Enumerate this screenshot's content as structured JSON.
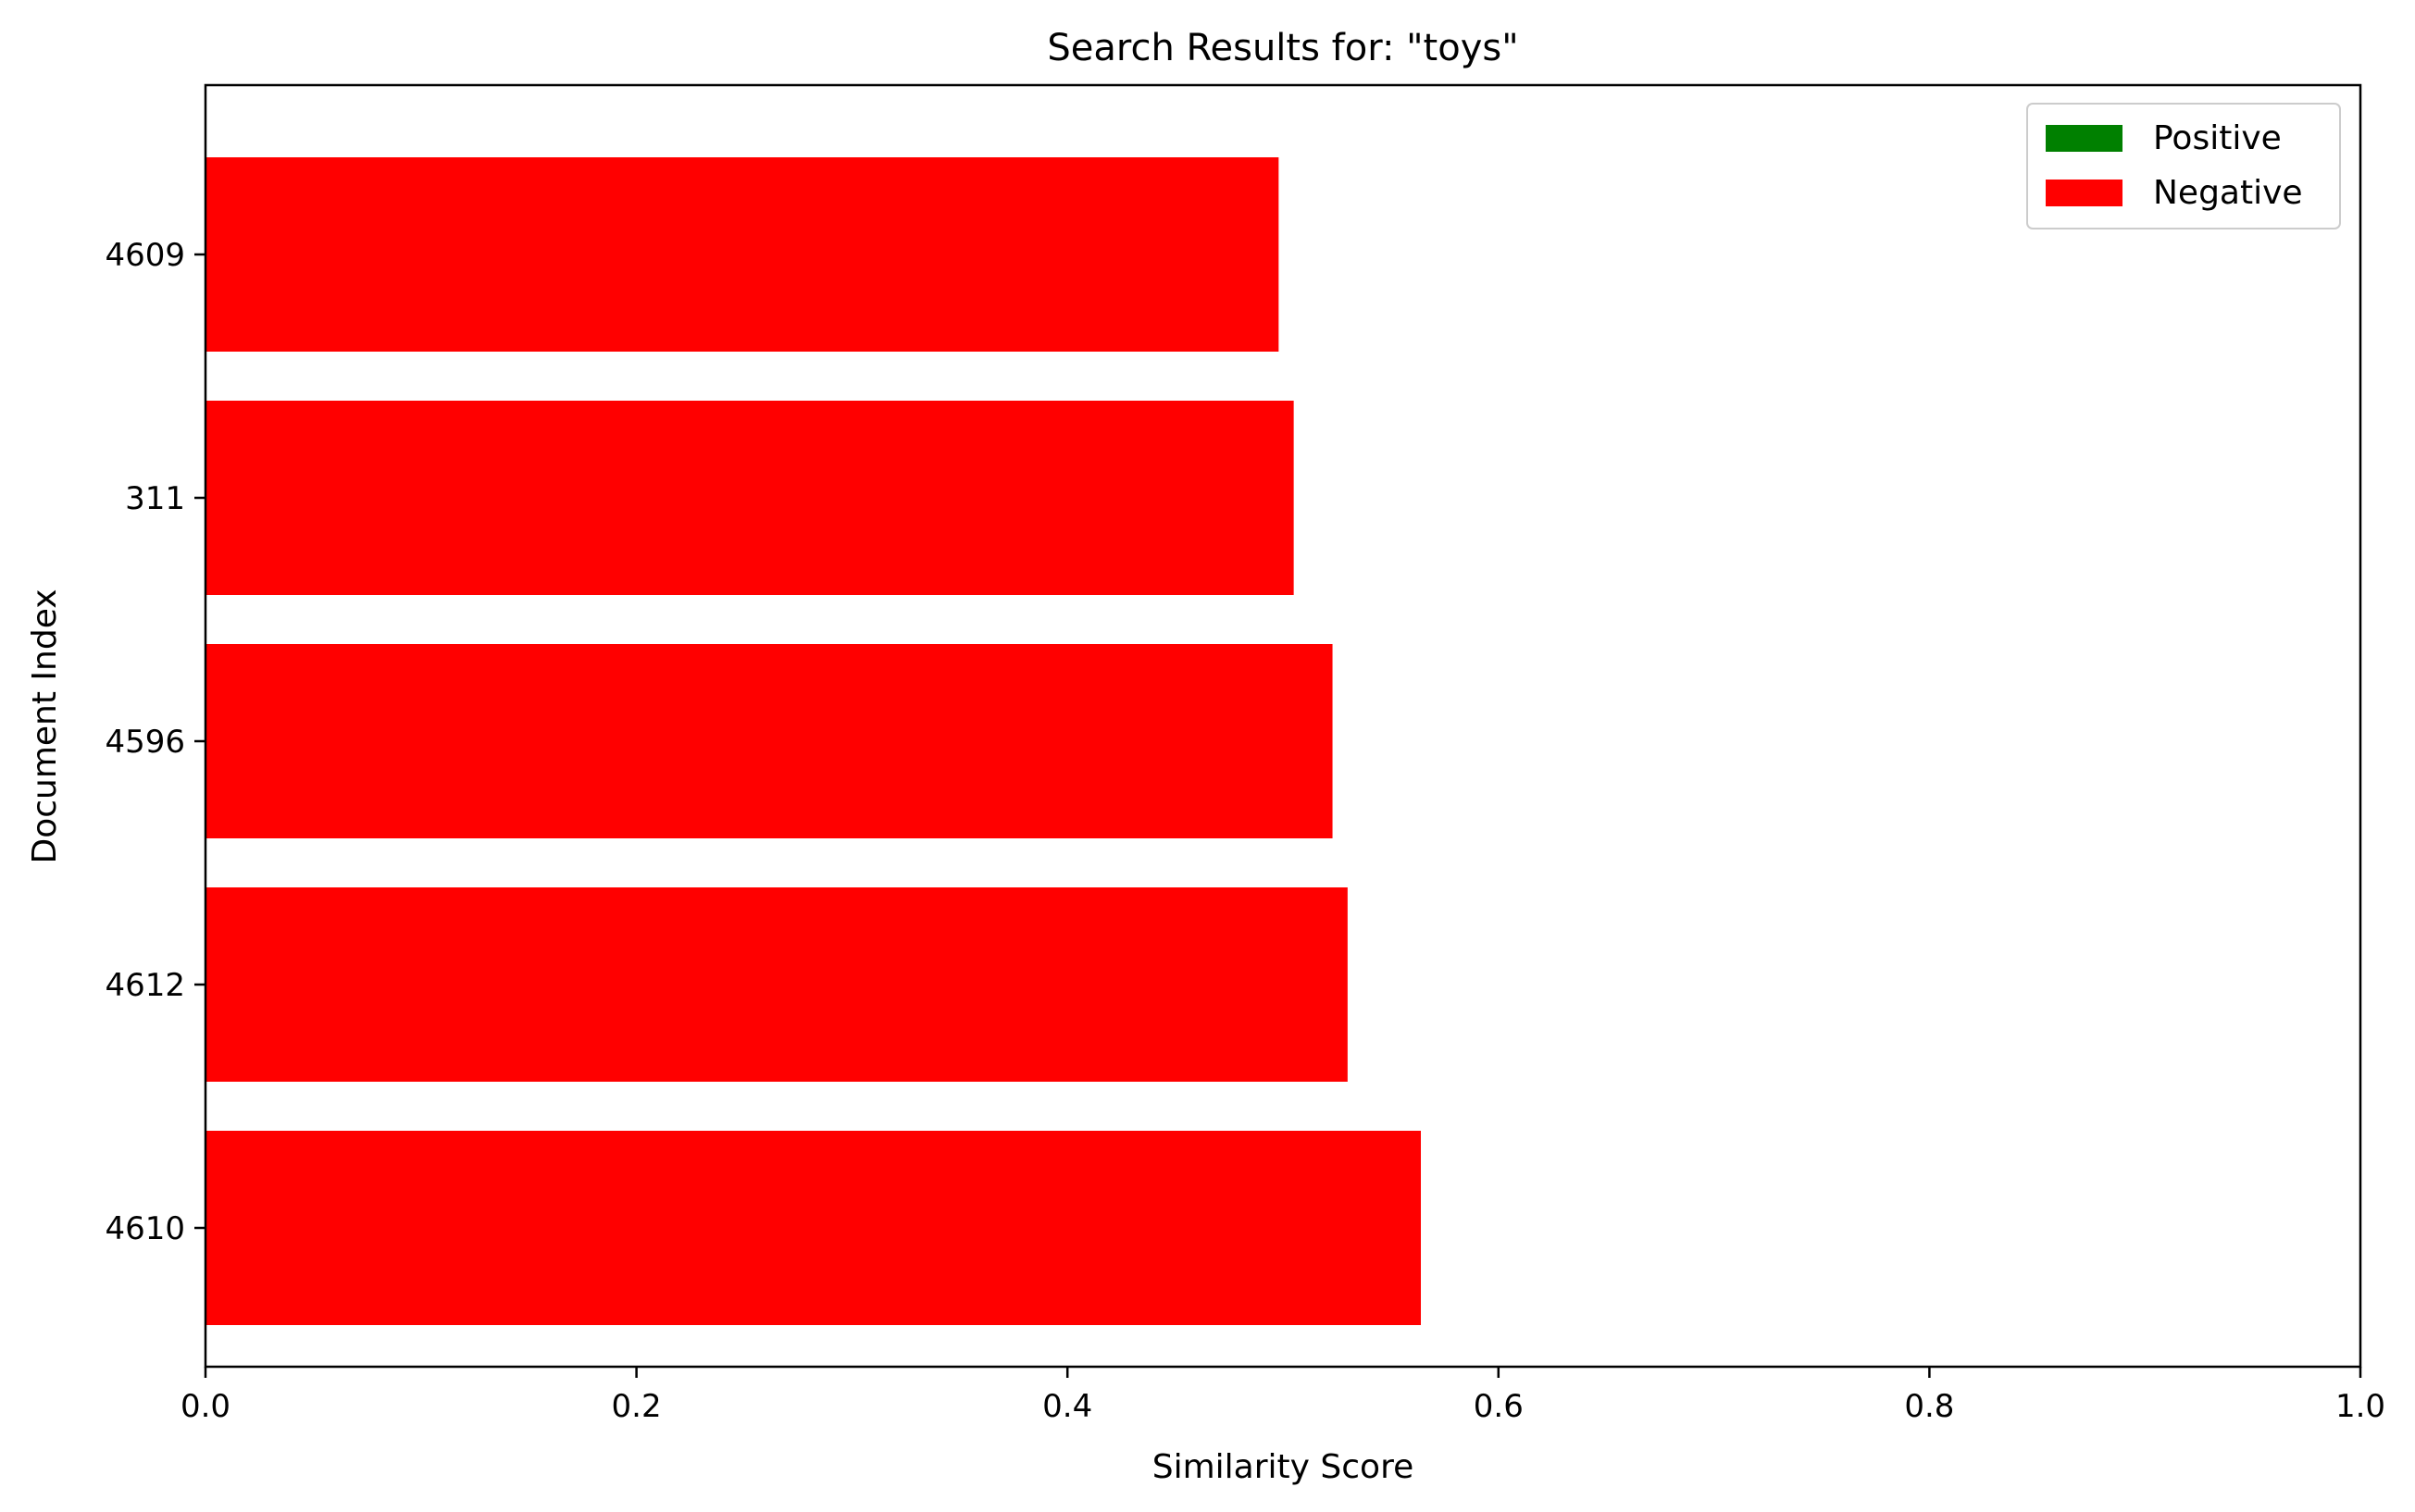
{
  "chart_data": {
    "type": "bar",
    "orientation": "horizontal",
    "title": "Search Results for: \"toys\"",
    "xlabel": "Similarity Score",
    "ylabel": "Document Index",
    "xlim": [
      0,
      1.0
    ],
    "x_ticks": [
      "0.0",
      "0.2",
      "0.4",
      "0.6",
      "0.8",
      "1.0"
    ],
    "categories": [
      "4610",
      "4612",
      "4596",
      "311",
      "4609"
    ],
    "values": [
      0.564,
      0.53,
      0.523,
      0.505,
      0.498
    ],
    "bar_sentiment": [
      "Negative",
      "Negative",
      "Negative",
      "Negative",
      "Negative"
    ],
    "legend": {
      "placement": "top-right",
      "entries": [
        {
          "label": "Positive",
          "color": "#008000"
        },
        {
          "label": "Negative",
          "color": "#ff0000"
        }
      ]
    },
    "grid": false,
    "colors": {
      "Positive": "#008000",
      "Negative": "#ff0000"
    }
  }
}
